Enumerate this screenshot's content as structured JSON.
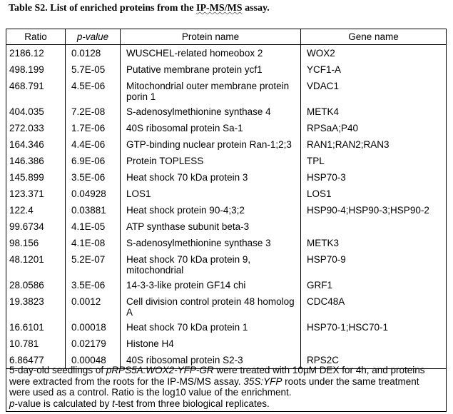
{
  "title": {
    "prefix": "Table S2.  List of enriched proteins from the ",
    "underlined": "IP-MS/MS",
    "suffix": " assay."
  },
  "columns": {
    "ratio": "Ratio",
    "pvalue": "p-value",
    "protein": "Protein name",
    "gene": "Gene name"
  },
  "rows": [
    {
      "ratio": "2186.12",
      "pvalue": "0.0128",
      "protein": "WUSCHEL-related homeobox 2",
      "gene": "WOX2"
    },
    {
      "ratio": "498.199",
      "pvalue": "5.7E-05",
      "protein": "Putative membrane protein ycf1",
      "gene": "YCF1-A"
    },
    {
      "ratio": "468.791",
      "pvalue": "4.5E-06",
      "protein": "Mitochondrial outer membrane protein porin 1",
      "gene": "VDAC1"
    },
    {
      "ratio": "404.035",
      "pvalue": "7.2E-08",
      "protein": "S-adenosylmethionine synthase 4",
      "gene": "METK4"
    },
    {
      "ratio": "272.033",
      "pvalue": "1.7E-06",
      "protein": "40S ribosomal protein Sa-1",
      "gene": "RPSaA;P40"
    },
    {
      "ratio": "164.346",
      "pvalue": "4.4E-06",
      "protein": "GTP-binding nuclear protein Ran-1;2;3",
      "gene": "RAN1;RAN2;RAN3"
    },
    {
      "ratio": "146.386",
      "pvalue": "6.9E-06",
      "protein": "Protein TOPLESS",
      "gene": "TPL"
    },
    {
      "ratio": "145.899",
      "pvalue": "3.5E-06",
      "protein": "Heat shock 70 kDa protein 3",
      "gene": "HSP70-3"
    },
    {
      "ratio": "123.371",
      "pvalue": "0.04928",
      "protein": "LOS1",
      "gene": "LOS1"
    },
    {
      "ratio": "122.4",
      "pvalue": "0.03881",
      "protein": "Heat shock protein 90-4;3;2",
      "gene": "HSP90-4;HSP90-3;HSP90-2"
    },
    {
      "ratio": "99.6734",
      "pvalue": "4.1E-05",
      "protein": "ATP synthase subunit beta-3",
      "gene": ""
    },
    {
      "ratio": "98.156",
      "pvalue": "4.1E-08",
      "protein": "S-adenosylmethionine synthase 3",
      "gene": "METK3"
    },
    {
      "ratio": "48.1201",
      "pvalue": "5.2E-07",
      "protein": "Heat shock 70 kDa protein 9, mitochondrial",
      "gene": "HSP70-9"
    },
    {
      "ratio": "28.0586",
      "pvalue": "3.5E-06",
      "protein": "14-3-3-like protein GF14 chi",
      "gene": "GRF1"
    },
    {
      "ratio": "19.3823",
      "pvalue": "0.0012",
      "protein": "Cell division control protein 48 homolog A",
      "gene": "CDC48A"
    },
    {
      "ratio": "16.6101",
      "pvalue": "0.00018",
      "protein": "Heat shock 70 kDa protein 1",
      "gene": "HSP70-1;HSC70-1"
    },
    {
      "ratio": "10.781",
      "pvalue": "0.02179",
      "protein": "Histone H4",
      "gene": ""
    },
    {
      "ratio": "6.86477",
      "pvalue": "0.00048",
      "protein": "40S ribosomal protein S2-3",
      "gene": "RPS2C"
    }
  ],
  "note": {
    "t1": "5-day-old seedlings of ",
    "i1": "pRPS5A:WOX2-YFP-GR",
    "t2": " were treated with 10µM DEX for 4h, and proteins were extracted from the roots for the IP-MS/MS assay. ",
    "i2": "35S:YFP",
    "t3": " roots under the same treatment were used as a control. Ratio is the log10 value of the enrichment.",
    "i3": "p",
    "t4": "-value is calculated by ",
    "i4": "t",
    "t5": "-test from three biological replicates."
  }
}
